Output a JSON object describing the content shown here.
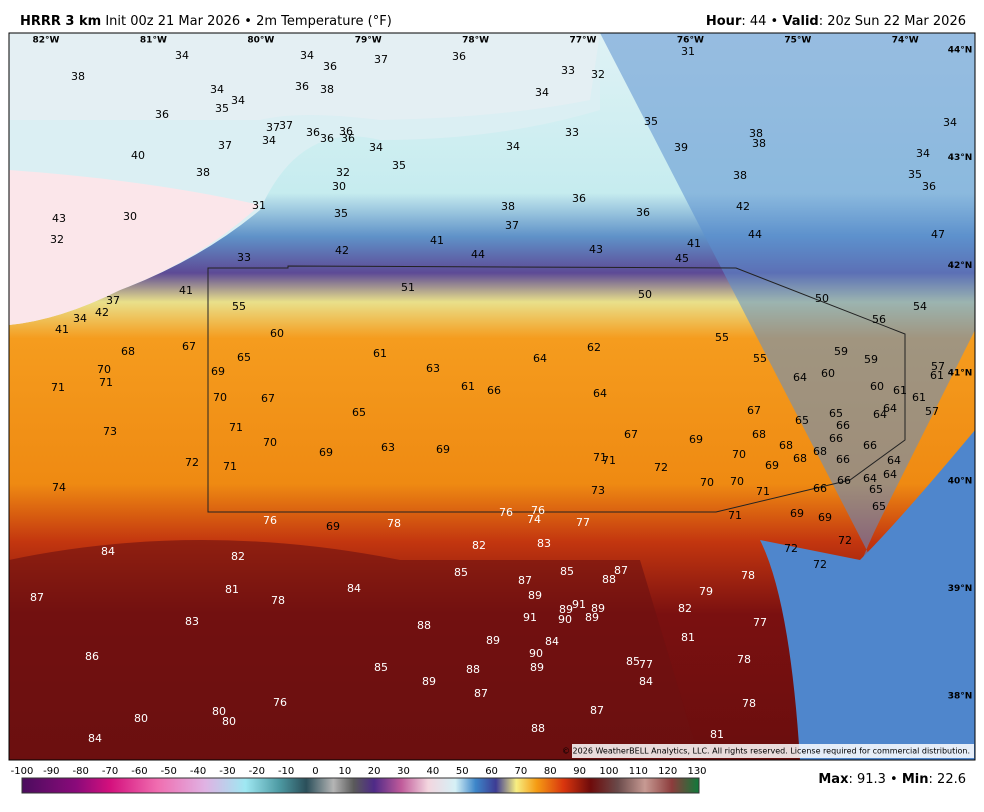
{
  "header": {
    "model": "HRRR 3 km",
    "description": "Init 00z 21 Mar 2026 • 2m Temperature (°F)",
    "hour_label": "Hour",
    "hour": ": 44 •",
    "valid_label": "Valid",
    "valid": ": 20z Sun 22 Mar 2026"
  },
  "longitudes": [
    "82°W",
    "81°W",
    "80°W",
    "79°W",
    "78°W",
    "77°W",
    "76°W",
    "75°W",
    "74°W"
  ],
  "latitudes": [
    "44°N",
    "43°N",
    "42°N",
    "41°N",
    "40°N",
    "39°N",
    "38°N"
  ],
  "temperatures": [
    34,
    34,
    36,
    37,
    36,
    31,
    33,
    32,
    38,
    34,
    36,
    38,
    35,
    34,
    36,
    34,
    37,
    37,
    34,
    36,
    36,
    36,
    36,
    37,
    34,
    33,
    35,
    39,
    38,
    38,
    34,
    40,
    35,
    34,
    38,
    32,
    34,
    35,
    36,
    30,
    38,
    31,
    38,
    36,
    42,
    36,
    43,
    30,
    35,
    37,
    32,
    41,
    44,
    47,
    42,
    44,
    43,
    41,
    45,
    33,
    51,
    50,
    50,
    41,
    37,
    55,
    42,
    34,
    41,
    56,
    54,
    60,
    55,
    59,
    59,
    57,
    68,
    67,
    65,
    61,
    63,
    64,
    62,
    55,
    64,
    60,
    61,
    70,
    71,
    71,
    69,
    61,
    66,
    64,
    60,
    61,
    70,
    67,
    65,
    67,
    65,
    65,
    66,
    64,
    61,
    57,
    64,
    73,
    71,
    70,
    63,
    69,
    69,
    67,
    69,
    68,
    68,
    66,
    66,
    70,
    69,
    68,
    68,
    66,
    64,
    71,
    72,
    71,
    71,
    72,
    64,
    64,
    70,
    70,
    66,
    66,
    65,
    74,
    73,
    71,
    65,
    76,
    69,
    78,
    76,
    76,
    74,
    77,
    71,
    69,
    69,
    84,
    82,
    83,
    72,
    72,
    72,
    82,
    85,
    87,
    85,
    88,
    87,
    78,
    81,
    78,
    84,
    89,
    91,
    89,
    79,
    89,
    91,
    90,
    89,
    82,
    87,
    83,
    88,
    77,
    84,
    89,
    81,
    90,
    89,
    85,
    77,
    86,
    85,
    88,
    78,
    89,
    84,
    87,
    76,
    80,
    80,
    80,
    87,
    78,
    84,
    88,
    81
  ],
  "copyright": "© 2026 WeatherBELL Analytics, LLC. All rights reserved. License required for commercial distribution.",
  "colorbar": {
    "ticks": [
      -100,
      -90,
      -80,
      -70,
      -60,
      -50,
      -40,
      -30,
      -20,
      -10,
      0,
      10,
      20,
      30,
      40,
      50,
      60,
      70,
      80,
      90,
      100,
      110,
      120,
      130
    ]
  },
  "footer": {
    "max_label": "Max",
    "max": ": 91.3 •",
    "min_label": "Min",
    "min": ": 22.6"
  }
}
